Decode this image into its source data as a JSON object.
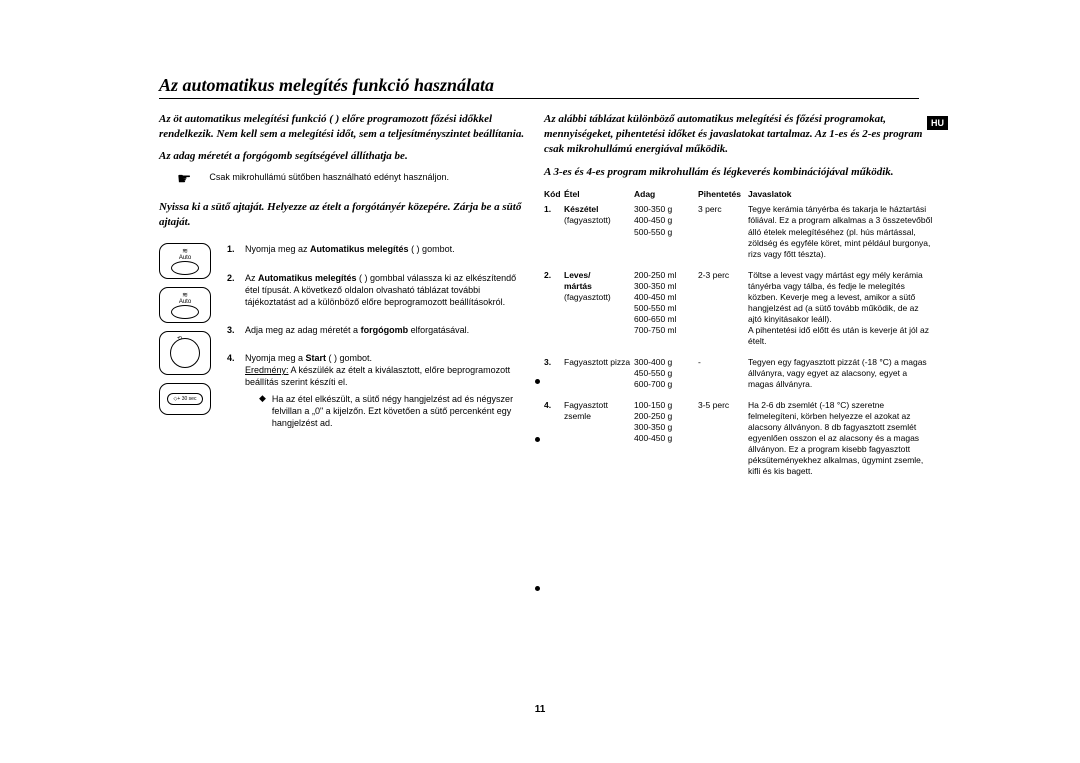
{
  "title": "Az automatikus melegítés funkció használata",
  "lang_badge": "HU",
  "page_number": "11",
  "left": {
    "intro1": "Az öt automatikus melegítési funkció (   ) előre programozott főzési időkkel rendelkezik. Nem kell sem a melegítési időt, sem a teljesítményszintet beállítania.",
    "intro2": "Az adag méretét a forgógomb segítségével állíthatja be.",
    "note": "Csak mikrohullámú sütőben használható edényt használjon.",
    "intro3": "Nyissa ki a sütő ajtaját. Helyezze az ételt a forgótányér közepére. Zárja be a sütő ajtaját.",
    "steps": {
      "s1_a": "Nyomja meg az ",
      "s1_b": "Automatikus melegítés",
      "s1_c": " (   ) gombot.",
      "s2_a": "Az ",
      "s2_b": "Automatikus melegítés",
      "s2_c": " (   ) gombbal válassza ki az elkészítendő étel típusát. A következő oldalon olvasható táblázat további tájékoztatást ad a különböző előre beprogramozott beállításokról.",
      "s3_a": "Adja meg az adag méretét a ",
      "s3_b": "forgógomb",
      "s3_c": " elforgatásával.",
      "s4_a": "Nyomja meg a ",
      "s4_b": "Start",
      "s4_c": " (   ) gombot.",
      "s4_res_label": "Eredmény:",
      "s4_res": " A készülék az ételt a kiválasztott, előre beprogramozott beállítás szerint készíti el.",
      "s4_bullet": "Ha az étel elkészült, a sütő négy hangjelzést ad és négyszer felvillan a „0\" a kijelzőn. Ezt követően a sütő percenként egy hangjelzést ad."
    },
    "icon_labels": {
      "auto": "Auto",
      "sec": "+ 30 sec"
    }
  },
  "right": {
    "intro1": "Az alábbi táblázat különböző automatikus melegítési és főzési programokat, mennyiségeket, pihentetési időket és javaslatokat tartalmaz. Az 1-es és 2-es program csak mikrohullámú energiával működik.",
    "intro2": "A 3-es és 4-es program mikrohullám és légkeverés kombinációjával működik.",
    "headers": {
      "kod": "Kód",
      "etel": "Étel",
      "adag": "Adag",
      "pih": "Pihentetés",
      "jav": "Javaslatok"
    },
    "rows": [
      {
        "kod": "1.",
        "etel_b": "Készétel",
        "etel_n": "(fagyasztott)",
        "adag": "300-350 g\n400-450 g\n500-550 g",
        "pih": "3 perc",
        "jav": "Tegye kerámia tányérba és takarja le háztartási fóliával. Ez a program alkalmas a 3 összetevőből álló ételek melegítéséhez (pl. hús mártással, zöldség és egyféle köret, mint például burgonya, rizs vagy főtt tészta)."
      },
      {
        "kod": "2.",
        "etel_b": "Leves/\nmártás",
        "etel_n": "(fagyasztott)",
        "adag": "200-250 ml\n300-350 ml\n400-450 ml\n500-550 ml\n600-650 ml\n700-750 ml",
        "pih": "2-3 perc",
        "jav": "Töltse a levest vagy mártást egy mély kerámia tányérba vagy tálba, és fedje le melegítés közben. Keverje meg a levest, amikor a sütő hangjelzést ad (a sütő tovább működik, de az ajtó kinyitásakor leáll).\nA pihentetési idő előtt és után is keverje át jól az ételt."
      },
      {
        "kod": "3.",
        "etel_b": "",
        "etel_n": "Fagyasztott pizza",
        "adag": "300-400 g\n450-550 g\n600-700 g",
        "pih": "-",
        "jav": "Tegyen egy fagyasztott pizzát (-18 °C) a magas állványra, vagy egyet az alacsony, egyet a magas állványra."
      },
      {
        "kod": "4.",
        "etel_b": "",
        "etel_n": "Fagyasztott zsemle",
        "adag": "100-150 g\n200-250 g\n300-350 g\n400-450 g",
        "pih": "3-5 perc",
        "jav": "Ha 2-6 db zsemlét (-18 °C) szeretne felmelegíteni, körben helyezze el azokat az alacsony állványon. 8 db fagyasztott zsemlét egyenlően osszon el az alacsony és a magas állványon. Ez a program kisebb fagyasztott péksüteményekhez alkalmas, úgymint zsemle, kifli és kis bagett."
      }
    ]
  }
}
